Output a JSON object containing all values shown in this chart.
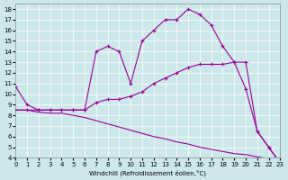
{
  "xlabel": "Windchill (Refroidissement éolien,°C)",
  "bg_color": "#cce8e8",
  "line_color": "#990099",
  "xlim": [
    0,
    23
  ],
  "ylim": [
    4,
    18.5
  ],
  "yticks": [
    4,
    5,
    6,
    7,
    8,
    9,
    10,
    11,
    12,
    13,
    14,
    15,
    16,
    17,
    18
  ],
  "xticks": [
    0,
    1,
    2,
    3,
    4,
    5,
    6,
    7,
    8,
    9,
    10,
    11,
    12,
    13,
    14,
    15,
    16,
    17,
    18,
    19,
    20,
    21,
    22,
    23
  ],
  "curve1_x": [
    0,
    1,
    2,
    3,
    4,
    5,
    6,
    7,
    8,
    9,
    10,
    11,
    12,
    13,
    14,
    15,
    16,
    17,
    18,
    19,
    20,
    21,
    22,
    23
  ],
  "curve1_y": [
    10.7,
    9.0,
    8.5,
    8.5,
    8.5,
    8.5,
    8.5,
    14.0,
    14.5,
    14.0,
    11.0,
    15.0,
    16.0,
    17.0,
    17.0,
    18.0,
    17.5,
    16.5,
    14.5,
    13.0,
    13.0,
    6.5,
    5.0,
    3.5
  ],
  "curve2_x": [
    0,
    1,
    2,
    3,
    4,
    5,
    6,
    7,
    8,
    9,
    10,
    11,
    12,
    13,
    14,
    15,
    16,
    17,
    18,
    19,
    20,
    21,
    22,
    23
  ],
  "curve2_y": [
    8.5,
    8.5,
    8.5,
    8.5,
    8.5,
    8.5,
    8.5,
    9.2,
    9.5,
    9.5,
    9.8,
    10.2,
    11.0,
    11.5,
    12.0,
    12.5,
    12.8,
    12.8,
    12.8,
    13.0,
    10.5,
    6.5,
    5.0,
    3.5
  ],
  "curve3_x": [
    0,
    1,
    2,
    3,
    4,
    5,
    6,
    7,
    8,
    9,
    10,
    11,
    12,
    13,
    14,
    15,
    16,
    17,
    18,
    19,
    20,
    21,
    22,
    23
  ],
  "curve3_y": [
    8.5,
    8.5,
    8.3,
    8.2,
    8.2,
    8.0,
    7.8,
    7.5,
    7.2,
    6.9,
    6.6,
    6.3,
    6.0,
    5.8,
    5.5,
    5.3,
    5.0,
    4.8,
    4.6,
    4.4,
    4.3,
    4.1,
    3.9,
    3.7
  ]
}
